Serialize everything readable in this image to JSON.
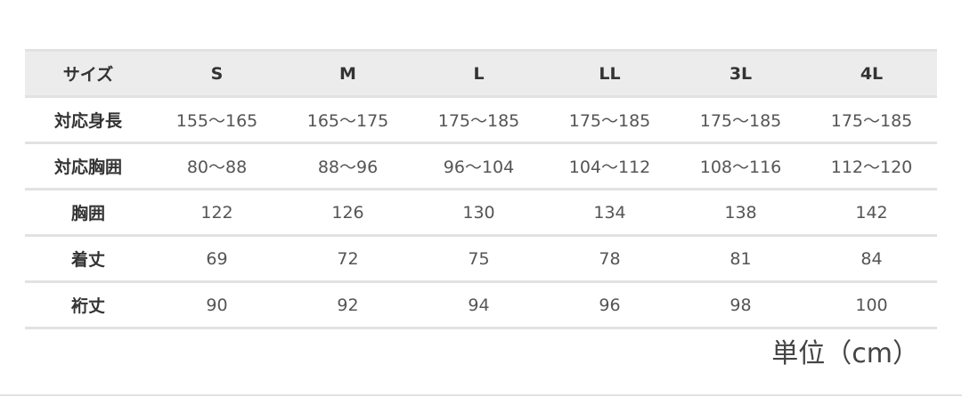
{
  "table": {
    "header": [
      "サイズ",
      "S",
      "M",
      "L",
      "LL",
      "3L",
      "4L"
    ],
    "rows": [
      {
        "label": "対応身長",
        "values": [
          "155〜165",
          "165〜175",
          "175〜185",
          "175〜185",
          "175〜185",
          "175〜185"
        ]
      },
      {
        "label": "対応胸囲",
        "values": [
          "80〜88",
          "88〜96",
          "96〜104",
          "104〜112",
          "108〜116",
          "112〜120"
        ]
      },
      {
        "label": "胸囲",
        "values": [
          "122",
          "126",
          "130",
          "134",
          "138",
          "142"
        ]
      },
      {
        "label": "着丈",
        "values": [
          "69",
          "72",
          "75",
          "78",
          "81",
          "84"
        ]
      },
      {
        "label": "裄丈",
        "values": [
          "90",
          "92",
          "94",
          "96",
          "98",
          "100"
        ]
      }
    ]
  },
  "unit_label": "単位（cm）"
}
